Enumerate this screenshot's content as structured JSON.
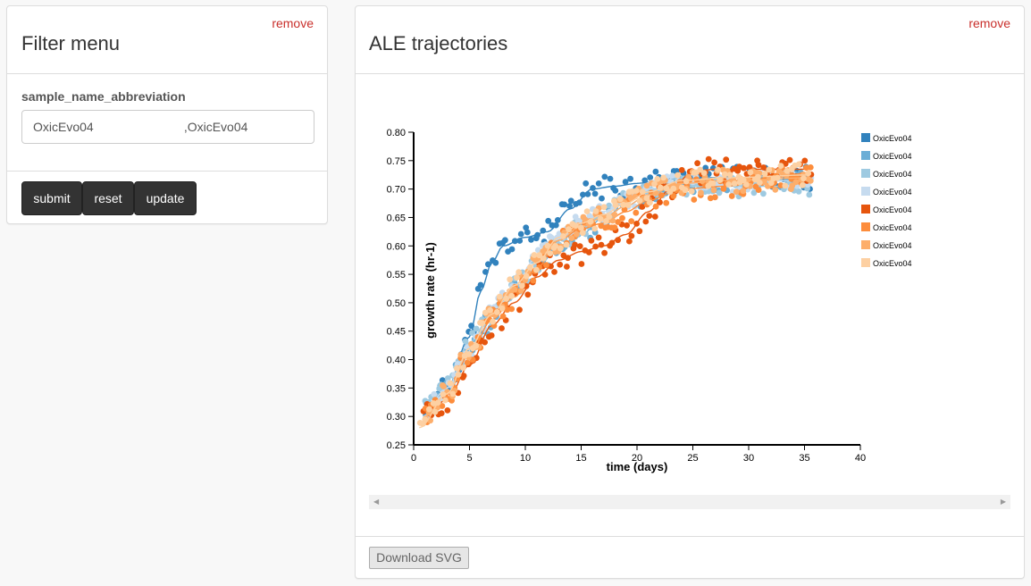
{
  "filter_panel": {
    "remove_label": "remove",
    "title": "Filter menu",
    "field_label": "sample_name_abbreviation",
    "field_value": "OxicEvo04                          ,OxicEvo04",
    "buttons": {
      "submit": "submit",
      "reset": "reset",
      "update": "update"
    }
  },
  "chart_panel": {
    "remove_label": "remove",
    "title": "ALE trajectories",
    "download_label": "Download SVG",
    "scroll_left": "◀",
    "scroll_right": "▶"
  },
  "chart_data": {
    "type": "scatter",
    "xlabel": "time (days)",
    "ylabel": "growth rate (hr-1)",
    "xlim": [
      0,
      40
    ],
    "ylim": [
      0.25,
      0.8
    ],
    "xticks": [
      0,
      5,
      10,
      15,
      20,
      25,
      30,
      35,
      40
    ],
    "yticks": [
      0.25,
      0.3,
      0.35,
      0.4,
      0.45,
      0.5,
      0.55,
      0.6,
      0.65,
      0.7,
      0.75,
      0.8
    ],
    "legend_position": "right",
    "series": [
      {
        "name": "OxicEvo04",
        "color": "#3182bd",
        "seed": 11,
        "t0": 1.0,
        "t1": 35.5,
        "noise": 0.02,
        "knots": [
          [
            1.0,
            0.31
          ],
          [
            3,
            0.35
          ],
          [
            5,
            0.44
          ],
          [
            6,
            0.52
          ],
          [
            7,
            0.57
          ],
          [
            8,
            0.6
          ],
          [
            10,
            0.615
          ],
          [
            12,
            0.625
          ],
          [
            14,
            0.665
          ],
          [
            16,
            0.7
          ],
          [
            18,
            0.705
          ],
          [
            20,
            0.71
          ],
          [
            22,
            0.715
          ],
          [
            24,
            0.72
          ],
          [
            36,
            0.72
          ]
        ]
      },
      {
        "name": "OxicEvo04",
        "color": "#6baed6",
        "seed": 23,
        "t0": 1.0,
        "t1": 35.5,
        "noise": 0.02,
        "knots": [
          [
            1.0,
            0.31
          ],
          [
            3,
            0.35
          ],
          [
            5,
            0.42
          ],
          [
            7,
            0.47
          ],
          [
            9,
            0.52
          ],
          [
            11,
            0.56
          ],
          [
            13,
            0.6
          ],
          [
            15,
            0.62
          ],
          [
            17,
            0.65
          ],
          [
            19,
            0.67
          ],
          [
            21,
            0.69
          ],
          [
            24,
            0.71
          ],
          [
            27,
            0.715
          ],
          [
            36,
            0.715
          ]
        ]
      },
      {
        "name": "OxicEvo04",
        "color": "#9ecae1",
        "seed": 37,
        "t0": 1.0,
        "t1": 35.5,
        "noise": 0.018,
        "knots": [
          [
            1.0,
            0.31
          ],
          [
            3,
            0.35
          ],
          [
            5,
            0.43
          ],
          [
            7,
            0.48
          ],
          [
            9,
            0.525
          ],
          [
            11,
            0.57
          ],
          [
            13,
            0.61
          ],
          [
            15,
            0.63
          ],
          [
            17,
            0.66
          ],
          [
            19,
            0.68
          ],
          [
            21,
            0.7
          ],
          [
            24,
            0.705
          ],
          [
            36,
            0.705
          ]
        ]
      },
      {
        "name": "OxicEvo04",
        "color": "#c6dbef",
        "seed": 41,
        "t0": 1.0,
        "t1": 35.5,
        "noise": 0.018,
        "knots": [
          [
            1.0,
            0.31
          ],
          [
            3,
            0.35
          ],
          [
            5,
            0.42
          ],
          [
            7,
            0.48
          ],
          [
            9,
            0.53
          ],
          [
            11,
            0.58
          ],
          [
            13,
            0.62
          ],
          [
            15,
            0.64
          ],
          [
            17,
            0.66
          ],
          [
            19,
            0.68
          ],
          [
            21,
            0.7
          ],
          [
            24,
            0.71
          ],
          [
            36,
            0.715
          ]
        ]
      },
      {
        "name": "OxicEvo04",
        "color": "#e6550d",
        "seed": 53,
        "t0": 1.0,
        "t1": 35.5,
        "noise": 0.022,
        "knots": [
          [
            1.0,
            0.3
          ],
          [
            3,
            0.33
          ],
          [
            5,
            0.39
          ],
          [
            7,
            0.46
          ],
          [
            9,
            0.5
          ],
          [
            11,
            0.545
          ],
          [
            13,
            0.575
          ],
          [
            15,
            0.59
          ],
          [
            17,
            0.6
          ],
          [
            19,
            0.62
          ],
          [
            21,
            0.66
          ],
          [
            23,
            0.7
          ],
          [
            25,
            0.73
          ],
          [
            27,
            0.735
          ],
          [
            36,
            0.735
          ]
        ]
      },
      {
        "name": "OxicEvo04",
        "color": "#fd8d3c",
        "seed": 67,
        "t0": 1.0,
        "t1": 35.5,
        "noise": 0.02,
        "knots": [
          [
            1.0,
            0.3
          ],
          [
            3,
            0.34
          ],
          [
            5,
            0.41
          ],
          [
            7,
            0.47
          ],
          [
            9,
            0.51
          ],
          [
            11,
            0.56
          ],
          [
            13,
            0.61
          ],
          [
            15,
            0.63
          ],
          [
            17,
            0.64
          ],
          [
            19,
            0.66
          ],
          [
            21,
            0.68
          ],
          [
            24,
            0.7
          ],
          [
            28,
            0.705
          ],
          [
            32,
            0.72
          ],
          [
            36,
            0.73
          ]
        ]
      },
      {
        "name": "OxicEvo04",
        "color": "#fdae6b",
        "seed": 79,
        "t0": 1.0,
        "t1": 35.5,
        "noise": 0.02,
        "knots": [
          [
            1.0,
            0.3
          ],
          [
            3,
            0.34
          ],
          [
            5,
            0.42
          ],
          [
            7,
            0.48
          ],
          [
            9,
            0.53
          ],
          [
            11,
            0.57
          ],
          [
            13,
            0.61
          ],
          [
            15,
            0.635
          ],
          [
            17,
            0.65
          ],
          [
            19,
            0.67
          ],
          [
            21,
            0.69
          ],
          [
            24,
            0.71
          ],
          [
            28,
            0.715
          ],
          [
            36,
            0.72
          ]
        ]
      },
      {
        "name": "OxicEvo04",
        "color": "#fdd0a2",
        "seed": 97,
        "t0": 0.5,
        "t1": 35.5,
        "noise": 0.02,
        "knots": [
          [
            0.5,
            0.28
          ],
          [
            3,
            0.34
          ],
          [
            5,
            0.42
          ],
          [
            7,
            0.48
          ],
          [
            9,
            0.53
          ],
          [
            11,
            0.57
          ],
          [
            13,
            0.615
          ],
          [
            15,
            0.64
          ],
          [
            17,
            0.655
          ],
          [
            19,
            0.675
          ],
          [
            21,
            0.695
          ],
          [
            24,
            0.715
          ],
          [
            28,
            0.72
          ],
          [
            36,
            0.725
          ]
        ]
      }
    ]
  }
}
